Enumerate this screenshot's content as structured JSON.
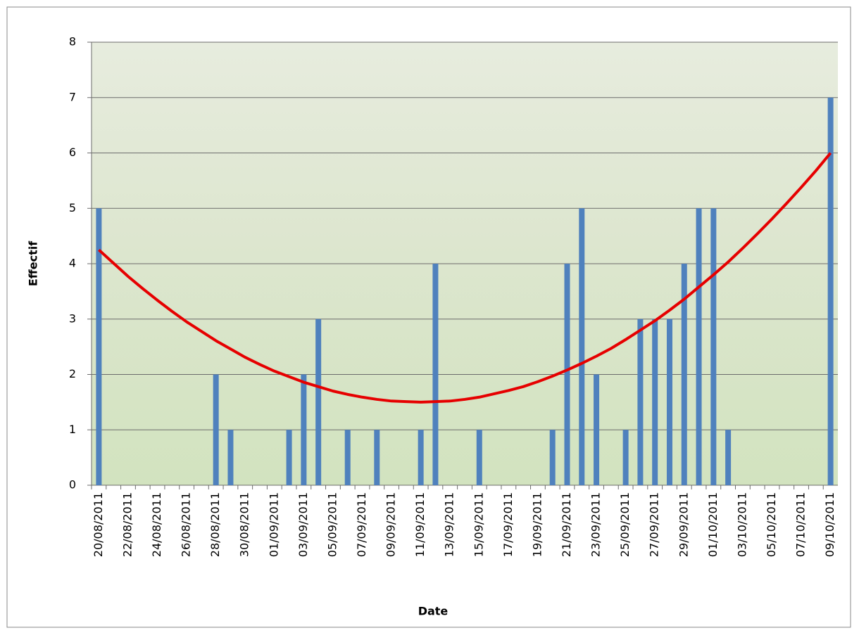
{
  "chart_data": {
    "type": "bar",
    "x_label": "Date",
    "y_label": "Effectif",
    "categories": [
      "20/08/2011",
      null,
      "22/08/2011",
      null,
      "24/08/2011",
      null,
      "26/08/2011",
      null,
      "28/08/2011",
      null,
      "30/08/2011",
      null,
      "01/09/2011",
      null,
      "03/09/2011",
      null,
      "05/09/2011",
      null,
      "07/09/2011",
      null,
      "09/09/2011",
      null,
      "11/09/2011",
      null,
      "13/09/2011",
      null,
      "15/09/2011",
      null,
      "17/09/2011",
      null,
      "19/09/2011",
      null,
      "21/09/2011",
      null,
      "23/09/2011",
      null,
      "25/09/2011",
      null,
      "27/09/2011",
      null,
      "29/09/2011",
      null,
      "01/10/2011",
      null,
      "03/10/2011",
      null,
      "05/10/2011",
      null,
      "07/10/2011",
      null,
      "09/10/2011"
    ],
    "series": [
      {
        "type": "bar",
        "color": "#4f81bd",
        "values": [
          5,
          null,
          null,
          null,
          null,
          null,
          null,
          null,
          2,
          1,
          null,
          null,
          null,
          1,
          2,
          3,
          null,
          1,
          null,
          1,
          null,
          null,
          1,
          4,
          null,
          null,
          1,
          null,
          null,
          null,
          null,
          1,
          4,
          5,
          2,
          null,
          1,
          3,
          3,
          3,
          4,
          5,
          5,
          1,
          null,
          null,
          null,
          null,
          null,
          null,
          7
        ]
      },
      {
        "type": "line",
        "color": "#e60000",
        "values": [
          4.25,
          4.01,
          3.77,
          3.55,
          3.34,
          3.14,
          2.95,
          2.78,
          2.61,
          2.46,
          2.31,
          2.18,
          2.06,
          1.96,
          1.86,
          1.78,
          1.7,
          1.64,
          1.59,
          1.55,
          1.52,
          1.51,
          1.5,
          1.51,
          1.52,
          1.55,
          1.59,
          1.65,
          1.71,
          1.78,
          1.87,
          1.97,
          2.08,
          2.2,
          2.33,
          2.47,
          2.63,
          2.8,
          2.97,
          3.16,
          3.36,
          3.58,
          3.8,
          4.03,
          4.28,
          4.54,
          4.81,
          5.09,
          5.38,
          5.68,
          6.0
        ]
      }
    ],
    "ylim": [
      0,
      8
    ],
    "yticks": [
      0,
      1,
      2,
      3,
      4,
      5,
      6,
      7,
      8
    ],
    "grid": true
  }
}
